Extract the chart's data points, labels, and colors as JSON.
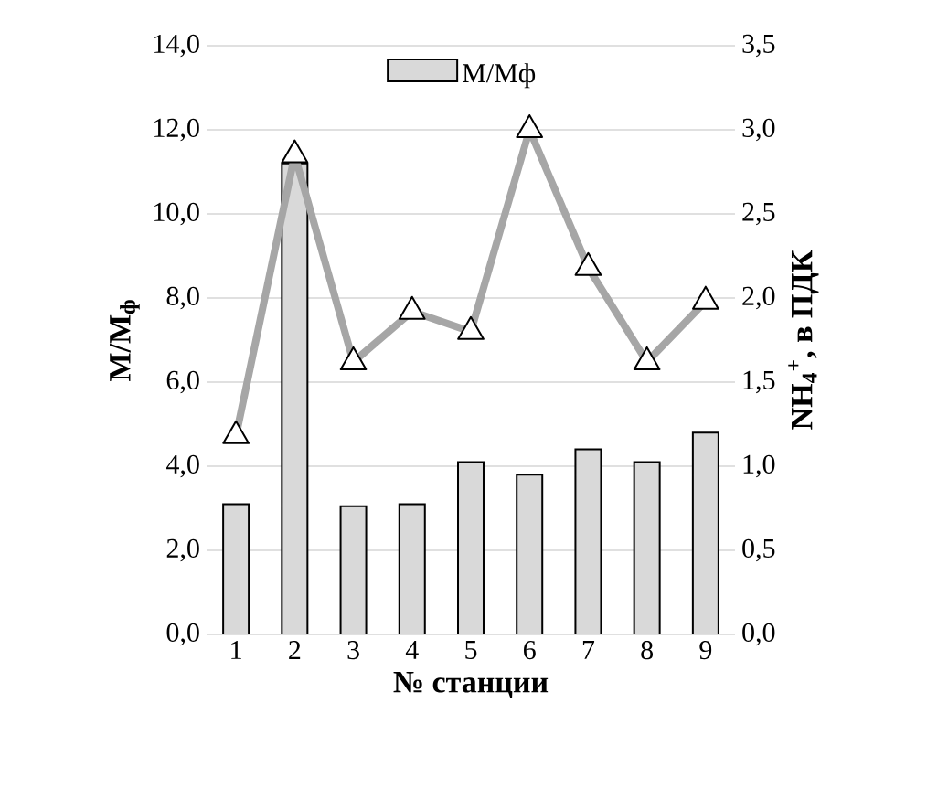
{
  "chart_data": {
    "type": "bar",
    "xlabel": "№ станции",
    "ylabel": "М/М$_{ф}$",
    "y2label": "NH$_{4}$$^{+}$, в ПДК",
    "categories": [
      "1",
      "2",
      "3",
      "4",
      "5",
      "6",
      "7",
      "8",
      "9"
    ],
    "series": [
      {
        "name": "М/Мф",
        "color": "#d9d9d9",
        "values": [
          3.1,
          11.2,
          3.05,
          3.1,
          4.1,
          3.8,
          4.4,
          4.1,
          4.8
        ]
      },
      {
        "type": "line",
        "axis": "y2",
        "color": "#a6a6a6",
        "marker": "triangle",
        "values": [
          1.18,
          2.85,
          1.62,
          1.92,
          1.8,
          3.0,
          2.18,
          1.62,
          1.98
        ]
      }
    ],
    "ylim": [
      0,
      14
    ],
    "yticks": [
      {
        "value": 0,
        "label": "0,0"
      },
      {
        "value": 2,
        "label": "2,0"
      },
      {
        "value": 4,
        "label": "4,0"
      },
      {
        "value": 6,
        "label": "6,0"
      },
      {
        "value": 8,
        "label": "8,0"
      },
      {
        "value": 10,
        "label": "10,0"
      },
      {
        "value": 12,
        "label": "12,0"
      },
      {
        "value": 14,
        "label": "14,0"
      }
    ],
    "y2lim": [
      0,
      3.5
    ],
    "y2ticks": [
      {
        "value": 0,
        "label": "0,0"
      },
      {
        "value": 0.5,
        "label": "0,5"
      },
      {
        "value": 1,
        "label": "1,0"
      },
      {
        "value": 1.5,
        "label": "1,5"
      },
      {
        "value": 2,
        "label": "2,0"
      },
      {
        "value": 2.5,
        "label": "2,5"
      },
      {
        "value": 3,
        "label": "3,0"
      },
      {
        "value": 3.5,
        "label": "3,5"
      }
    ],
    "grid": "y",
    "legend": "top"
  }
}
